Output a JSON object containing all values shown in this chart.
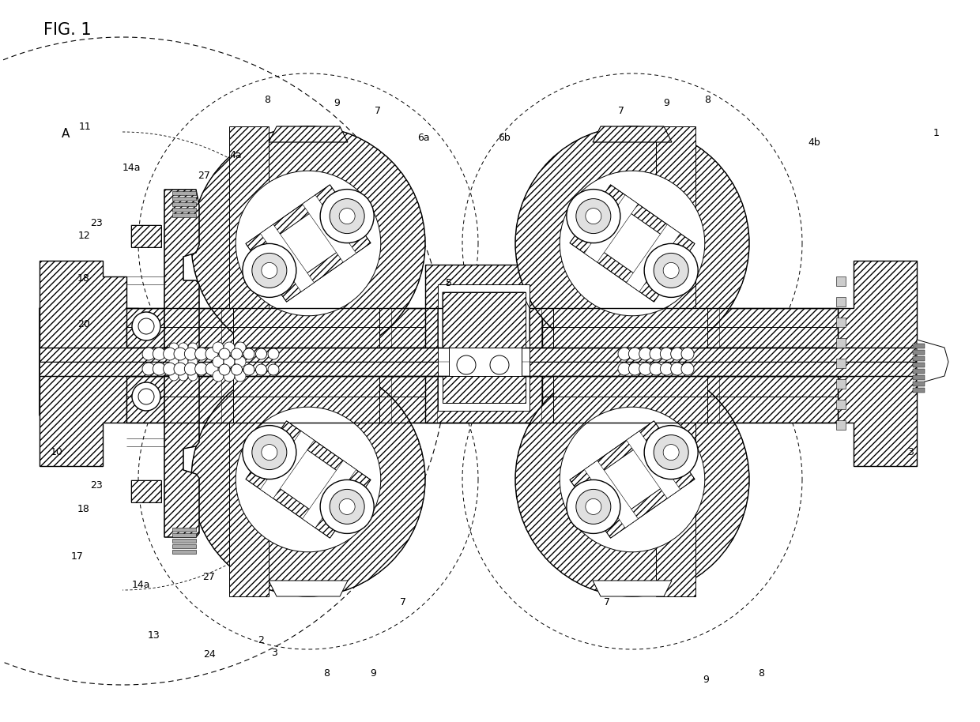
{
  "bg_color": "#ffffff",
  "fig_title": "FIG. 1",
  "lw_thin": 0.5,
  "lw_med": 0.9,
  "lw_thick": 1.5,
  "lw_vthick": 2.0,
  "hatch_density": "////",
  "labels": [
    [
      "FIG. 1",
      55,
      38,
      15,
      "left"
    ],
    [
      "A",
      78,
      170,
      11,
      "left"
    ],
    [
      "1",
      1185,
      168,
      9,
      "center"
    ],
    [
      "2",
      330,
      810,
      9,
      "center"
    ],
    [
      "3",
      347,
      826,
      9,
      "center"
    ],
    [
      "3",
      1152,
      572,
      9,
      "center"
    ],
    [
      "4a",
      298,
      196,
      9,
      "center"
    ],
    [
      "4b",
      1030,
      180,
      9,
      "center"
    ],
    [
      "5",
      568,
      358,
      9,
      "center"
    ],
    [
      "6a",
      536,
      175,
      9,
      "center"
    ],
    [
      "6b",
      638,
      175,
      9,
      "center"
    ],
    [
      "7",
      478,
      140,
      9,
      "center"
    ],
    [
      "7",
      786,
      140,
      9,
      "center"
    ],
    [
      "7",
      510,
      762,
      9,
      "center"
    ],
    [
      "7",
      768,
      762,
      9,
      "center"
    ],
    [
      "8",
      338,
      127,
      9,
      "center"
    ],
    [
      "8",
      895,
      127,
      9,
      "center"
    ],
    [
      "8",
      413,
      853,
      9,
      "center"
    ],
    [
      "8",
      963,
      853,
      9,
      "center"
    ],
    [
      "9",
      426,
      130,
      9,
      "center"
    ],
    [
      "9",
      843,
      130,
      9,
      "center"
    ],
    [
      "9",
      472,
      853,
      9,
      "center"
    ],
    [
      "9",
      893,
      860,
      9,
      "center"
    ],
    [
      "10",
      72,
      572,
      9,
      "center"
    ],
    [
      "11",
      108,
      160,
      9,
      "center"
    ],
    [
      "12",
      107,
      298,
      9,
      "center"
    ],
    [
      "13",
      195,
      804,
      9,
      "center"
    ],
    [
      "14a",
      166,
      212,
      9,
      "center"
    ],
    [
      "14a",
      178,
      740,
      9,
      "center"
    ],
    [
      "17",
      98,
      704,
      9,
      "center"
    ],
    [
      "18",
      106,
      352,
      9,
      "center"
    ],
    [
      "18",
      106,
      644,
      9,
      "center"
    ],
    [
      "20",
      106,
      410,
      9,
      "center"
    ],
    [
      "23",
      122,
      282,
      9,
      "center"
    ],
    [
      "23",
      122,
      614,
      9,
      "center"
    ],
    [
      "24",
      265,
      828,
      9,
      "center"
    ],
    [
      "27",
      258,
      222,
      9,
      "center"
    ],
    [
      "27",
      264,
      730,
      9,
      "center"
    ]
  ]
}
